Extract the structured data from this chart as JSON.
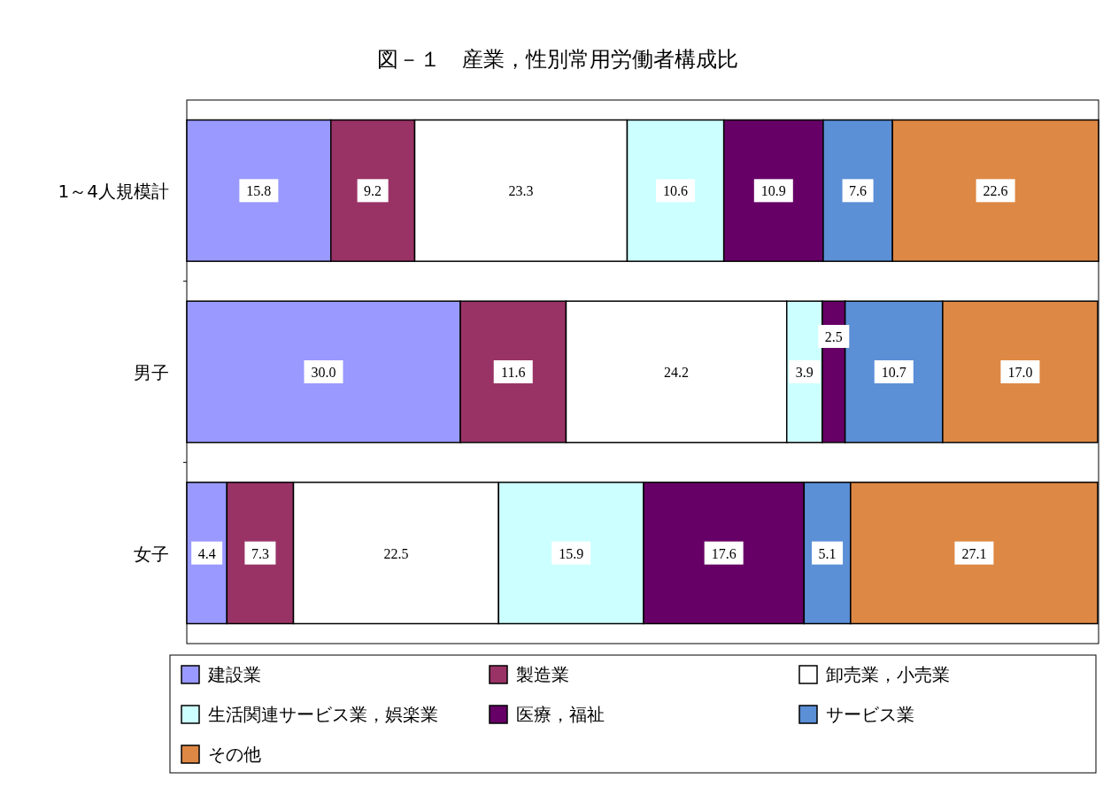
{
  "chart_data": {
    "type": "bar",
    "orientation": "horizontal",
    "stacked": true,
    "title": "図－１　産業，性別常用労働者構成比",
    "categories": [
      "1～4人規模計",
      "男子",
      "女子"
    ],
    "series": [
      {
        "name": "建設業",
        "color": "#9999ff",
        "values": [
          15.8,
          30.0,
          4.4
        ],
        "value_labels": [
          "15.8",
          "30.0",
          "4.4"
        ]
      },
      {
        "name": "製造業",
        "color": "#993366",
        "values": [
          9.2,
          11.6,
          7.3
        ],
        "value_labels": [
          "9.2",
          "11.6",
          "7.3"
        ]
      },
      {
        "name": "卸売業，小売業",
        "color": "#ffffff",
        "values": [
          23.3,
          24.2,
          22.5
        ],
        "value_labels": [
          "23.3",
          "24.2",
          "22.5"
        ]
      },
      {
        "name": "生活関連サービス業，娯楽業",
        "color": "#ccffff",
        "values": [
          10.6,
          3.9,
          15.9
        ],
        "value_labels": [
          "10.6",
          "3.9",
          "15.9"
        ]
      },
      {
        "name": "医療，福祉",
        "color": "#660066",
        "values": [
          10.9,
          2.5,
          17.6
        ],
        "value_labels": [
          "10.9",
          "2.5",
          "17.6"
        ]
      },
      {
        "name": "サービス業",
        "color": "#5b8fd6",
        "values": [
          7.6,
          10.7,
          5.1
        ],
        "value_labels": [
          "7.6",
          "10.7",
          "5.1"
        ]
      },
      {
        "name": "その他",
        "color": "#dd8844",
        "values": [
          22.6,
          17.0,
          27.1
        ],
        "value_labels": [
          "22.6",
          "17.0",
          "27.1"
        ]
      }
    ],
    "xlim": [
      0,
      100
    ],
    "legend": "bottom"
  }
}
